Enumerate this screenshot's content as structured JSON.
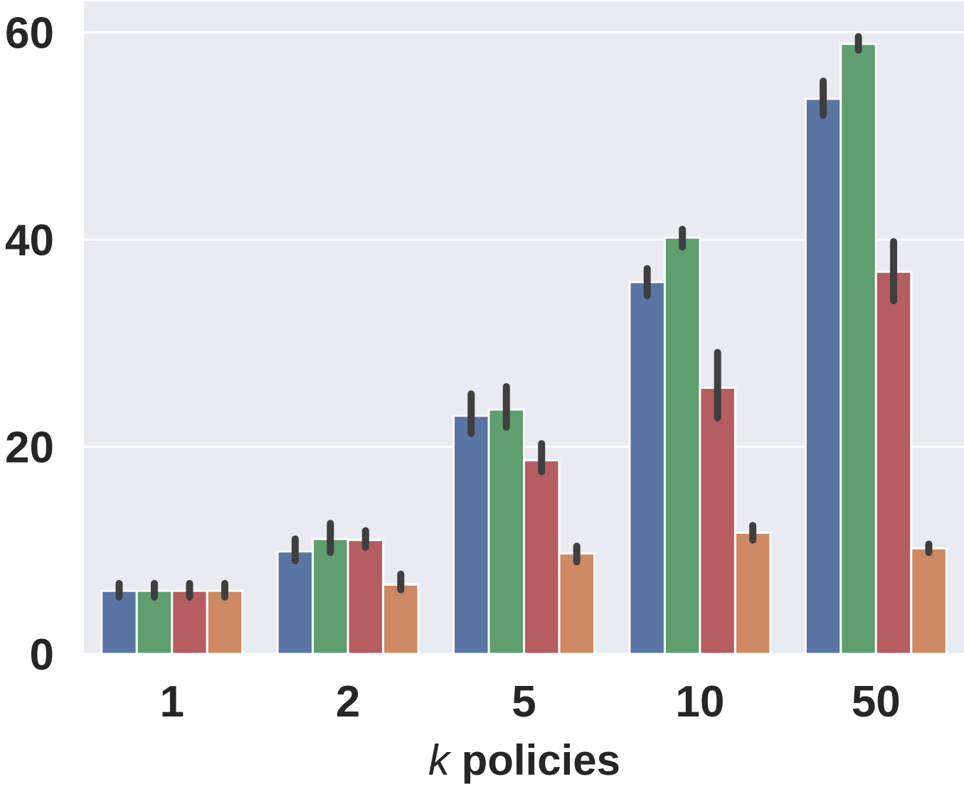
{
  "chart_data": {
    "type": "bar",
    "categories": [
      "1",
      "2",
      "5",
      "10",
      "50"
    ],
    "xlabel_var": "k",
    "xlabel_text": "policies",
    "ylabel": "",
    "ylim": [
      0,
      63
    ],
    "yticks": [
      0,
      20,
      40,
      60
    ],
    "grid": true,
    "legend": "none",
    "colors": {
      "background": "#eaeaf2",
      "grid": "#ffffff",
      "errorbar": "#3f3f3f",
      "bar_edge": "#ffffff"
    },
    "series": [
      {
        "color": "#5975a4",
        "values": [
          6.1,
          9.9,
          23.0,
          35.9,
          53.6
        ],
        "err_low": [
          5.5,
          9.0,
          21.3,
          34.6,
          52.0
        ],
        "err_high": [
          6.8,
          11.1,
          25.1,
          37.2,
          55.3
        ]
      },
      {
        "color": "#5f9e6e",
        "values": [
          6.1,
          11.1,
          23.6,
          40.2,
          58.9
        ],
        "err_low": [
          5.5,
          9.8,
          21.9,
          39.3,
          58.3
        ],
        "err_high": [
          6.8,
          12.6,
          25.8,
          41.0,
          59.6
        ]
      },
      {
        "color": "#b55d60",
        "values": [
          6.1,
          11.0,
          18.7,
          25.7,
          36.9
        ],
        "err_low": [
          5.5,
          10.3,
          17.6,
          22.8,
          34.1
        ],
        "err_high": [
          6.8,
          11.9,
          20.3,
          29.1,
          39.8
        ]
      },
      {
        "color": "#cc8963",
        "values": [
          6.1,
          6.7,
          9.7,
          11.7,
          10.2
        ],
        "err_low": [
          5.5,
          6.2,
          8.9,
          11.0,
          9.8
        ],
        "err_high": [
          6.8,
          7.7,
          10.4,
          12.4,
          10.6
        ]
      }
    ]
  }
}
